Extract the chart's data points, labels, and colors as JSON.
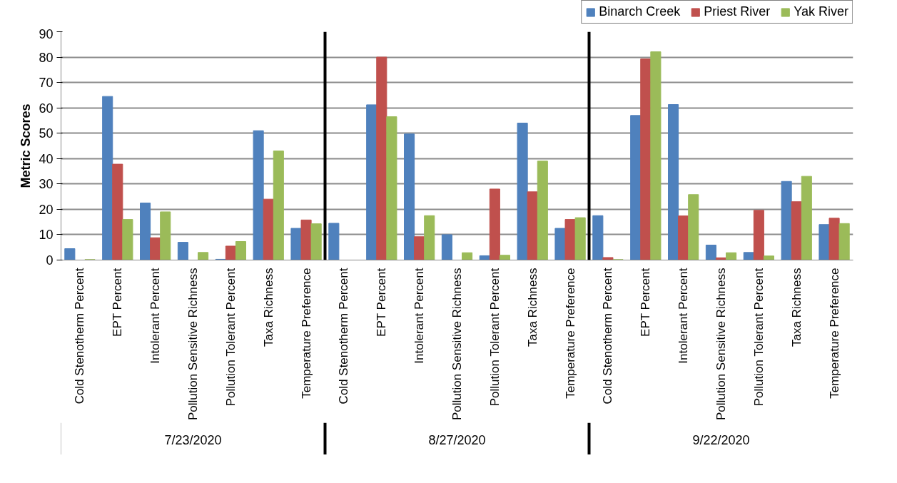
{
  "chart_data": {
    "type": "bar",
    "ylabel": "Metric Scores",
    "categories": [
      "Cold Stenotherm Percent",
      "EPT Percent",
      "Intolerant Percent",
      "Pollution Sensitive Richness",
      "Pollution Tolerant Percent",
      "Taxa Richness",
      "Temperature Preference",
      "Cold Stenotherm Percent",
      "EPT Percent",
      "Intolerant Percent",
      "Pollution Sensitive Richness",
      "Pollution Tolerant Percent",
      "Taxa Richness",
      "Temperature Preference",
      "Cold Stenotherm Percent",
      "EPT Percent",
      "Intolerant Percent",
      "Pollution Sensitive Richness",
      "Pollution Tolerant Percent",
      "Taxa Richness",
      "Temperature Preference"
    ],
    "series": [
      {
        "name": "Binarch Creek",
        "color": "#4f81bd",
        "values": [
          4.5,
          64.5,
          22.5,
          7,
          0.3,
          51,
          12.5,
          14.5,
          61.2,
          49.7,
          10,
          1.7,
          54,
          12.5,
          17.5,
          57,
          61.3,
          5.9,
          3,
          31,
          14
        ]
      },
      {
        "name": "Priest River",
        "color": "#c0504d",
        "values": [
          0,
          37.8,
          8.8,
          0,
          5.5,
          24,
          15.8,
          0,
          80,
          9.2,
          0,
          28,
          26.9,
          16,
          1,
          79.3,
          17.4,
          0.9,
          19.6,
          23,
          16.5
        ]
      },
      {
        "name": "Yak River",
        "color": "#9bbb59",
        "values": [
          0.2,
          16,
          19,
          3,
          7.3,
          43,
          14.3,
          0,
          56.5,
          17.5,
          2.9,
          1.9,
          39,
          16.7,
          0.2,
          82.1,
          25.8,
          2.9,
          1.6,
          33,
          14.4
        ]
      }
    ],
    "annotations": [
      "7/23/2020",
      "8/27/2020",
      "9/22/2020"
    ],
    "ylim": [
      0,
      90
    ],
    "yticks": [
      0,
      10,
      20,
      30,
      40,
      50,
      60,
      70,
      80,
      90
    ],
    "grid": "y",
    "legend": "top right"
  }
}
